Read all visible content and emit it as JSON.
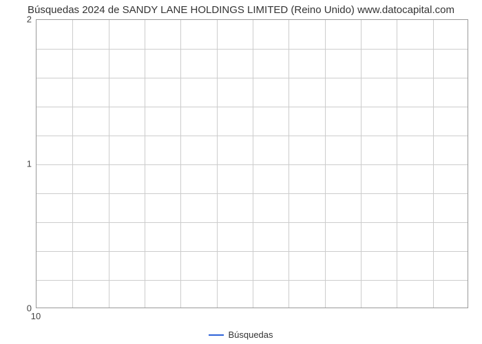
{
  "chart": {
    "type": "line",
    "title": "Búsquedas 2024 de SANDY LANE HOLDINGS LIMITED (Reino Unido) www.datocapital.com",
    "title_fontsize": 15,
    "title_color": "#333333",
    "background_color": "#ffffff",
    "plot_border_color": "#999999",
    "grid_color": "#cccccc",
    "x": {
      "lim": [
        10,
        11.2
      ],
      "major_ticks": [
        10
      ],
      "minor_ticks": [
        10.1,
        10.2,
        10.3,
        10.4,
        10.5,
        10.6,
        10.7,
        10.8,
        10.9,
        11.0,
        11.1
      ],
      "tick_labels": [
        "10"
      ],
      "label_fontsize": 13,
      "label_color": "#444444"
    },
    "y": {
      "lim": [
        0,
        2
      ],
      "major_ticks": [
        0,
        1,
        2
      ],
      "minor_ticks": [
        0.2,
        0.4,
        0.6,
        0.8,
        1.2,
        1.4,
        1.6,
        1.8
      ],
      "tick_labels": [
        "0",
        "1",
        "2"
      ],
      "label_fontsize": 13,
      "label_color": "#444444"
    },
    "series": [
      {
        "name": "Búsquedas",
        "color": "#2b60d8",
        "line_width": 2,
        "data": []
      }
    ],
    "legend": {
      "position": "bottom-center",
      "fontsize": 13
    }
  }
}
